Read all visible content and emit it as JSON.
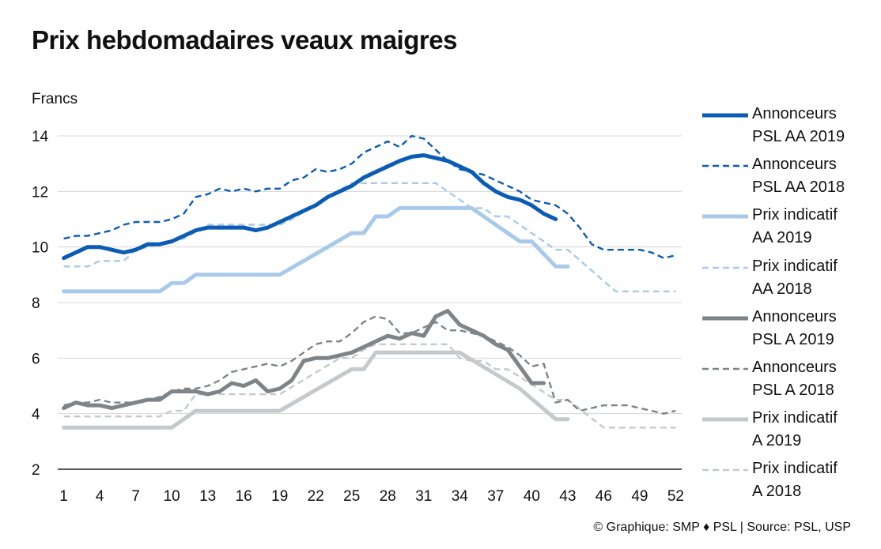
{
  "title": "Prix hebdomadaires veaux maigres",
  "units": "Francs",
  "credit": "© Graphique: SMP ♦ PSL | Source: PSL, USP",
  "chart_data": {
    "type": "line",
    "title": "Prix hebdomadaires veaux maigres",
    "ylabel": "Francs",
    "xlabel": "",
    "xlim": [
      1,
      52
    ],
    "ylim": [
      2,
      14
    ],
    "xticks": [
      1,
      4,
      7,
      10,
      13,
      16,
      19,
      22,
      25,
      28,
      31,
      34,
      37,
      40,
      43,
      46,
      49,
      52
    ],
    "yticks": [
      2,
      4,
      6,
      8,
      10,
      12,
      14
    ],
    "grid": "horizontal",
    "legend_position": "right",
    "series": [
      {
        "name": [
          "Annonceurs",
          "PSL AA 2019"
        ],
        "color": "#0b5cb5",
        "style": "solid",
        "width": 5,
        "x": [
          1,
          2,
          3,
          4,
          5,
          6,
          7,
          8,
          9,
          10,
          11,
          12,
          13,
          14,
          15,
          16,
          17,
          18,
          19,
          20,
          21,
          22,
          23,
          24,
          25,
          26,
          27,
          28,
          29,
          30,
          31,
          32,
          33,
          34,
          35,
          36,
          37,
          38,
          39,
          40,
          41,
          42
        ],
        "y": [
          9.6,
          9.8,
          10.0,
          10.0,
          9.9,
          9.8,
          9.9,
          10.1,
          10.1,
          10.2,
          10.4,
          10.6,
          10.7,
          10.7,
          10.7,
          10.7,
          10.6,
          10.7,
          10.9,
          11.1,
          11.3,
          11.5,
          11.8,
          12.0,
          12.2,
          12.5,
          12.7,
          12.9,
          13.1,
          13.25,
          13.3,
          13.2,
          13.1,
          12.9,
          12.7,
          12.3,
          12.0,
          11.8,
          11.7,
          11.5,
          11.2,
          11.0
        ]
      },
      {
        "name": [
          "Annonceurs",
          "PSL AA 2018"
        ],
        "color": "#0b5cb5",
        "style": "dashed",
        "width": 2.4,
        "x": [
          1,
          2,
          3,
          4,
          5,
          6,
          7,
          8,
          9,
          10,
          11,
          12,
          13,
          14,
          15,
          16,
          17,
          18,
          19,
          20,
          21,
          22,
          23,
          24,
          25,
          26,
          27,
          28,
          29,
          30,
          31,
          32,
          33,
          34,
          35,
          36,
          37,
          38,
          39,
          40,
          41,
          42,
          43,
          44,
          45,
          46,
          47,
          48,
          49,
          50,
          51,
          52
        ],
        "y": [
          10.3,
          10.4,
          10.4,
          10.5,
          10.6,
          10.8,
          10.9,
          10.9,
          10.9,
          11.0,
          11.2,
          11.8,
          11.9,
          12.1,
          12.0,
          12.1,
          12.0,
          12.1,
          12.1,
          12.4,
          12.5,
          12.8,
          12.7,
          12.8,
          13.0,
          13.4,
          13.6,
          13.8,
          13.6,
          14.0,
          13.9,
          13.5,
          13.1,
          12.8,
          12.7,
          12.6,
          12.4,
          12.2,
          12.0,
          11.7,
          11.6,
          11.5,
          11.2,
          10.7,
          10.1,
          9.9,
          9.9,
          9.9,
          9.9,
          9.8,
          9.6,
          9.7
        ]
      },
      {
        "name": [
          "Prix indicatif",
          "AA 2019"
        ],
        "color": "#a9c9eb",
        "style": "solid",
        "width": 5,
        "x": [
          1,
          9,
          10,
          11,
          12,
          19,
          25,
          26,
          27,
          28,
          29,
          35,
          39,
          40,
          42,
          43
        ],
        "y": [
          8.4,
          8.4,
          8.7,
          8.7,
          9.0,
          9.0,
          10.5,
          10.5,
          11.1,
          11.1,
          11.4,
          11.4,
          10.2,
          10.2,
          9.3,
          9.3
        ]
      },
      {
        "name": [
          "Prix indicatif",
          "AA 2018"
        ],
        "color": "#a9c9eb",
        "style": "dashed",
        "width": 2.4,
        "x": [
          1,
          3,
          4,
          6,
          7,
          11,
          13,
          19,
          20,
          25,
          32,
          35,
          36,
          37,
          38,
          42,
          43,
          47,
          48,
          52
        ],
        "y": [
          9.3,
          9.3,
          9.5,
          9.5,
          9.9,
          10.3,
          10.8,
          10.8,
          11.0,
          12.3,
          12.3,
          11.4,
          11.4,
          11.1,
          11.1,
          9.9,
          9.9,
          8.4,
          8.4,
          8.4
        ]
      },
      {
        "name": [
          "Annonceurs",
          "PSL A 2019"
        ],
        "color": "#7f8488",
        "style": "solid",
        "width": 5,
        "x": [
          1,
          2,
          3,
          4,
          5,
          6,
          7,
          8,
          9,
          10,
          11,
          12,
          13,
          14,
          15,
          16,
          17,
          18,
          19,
          20,
          21,
          22,
          23,
          24,
          25,
          26,
          27,
          28,
          29,
          30,
          31,
          32,
          33,
          34,
          35,
          36,
          37,
          38,
          39,
          40,
          41
        ],
        "y": [
          4.2,
          4.4,
          4.3,
          4.3,
          4.2,
          4.3,
          4.4,
          4.5,
          4.5,
          4.8,
          4.8,
          4.8,
          4.7,
          4.8,
          5.1,
          5.0,
          5.2,
          4.8,
          4.9,
          5.2,
          5.9,
          6.0,
          6.0,
          6.1,
          6.2,
          6.4,
          6.6,
          6.8,
          6.7,
          6.9,
          6.8,
          7.5,
          7.7,
          7.2,
          7.0,
          6.8,
          6.5,
          6.3,
          5.7,
          5.1,
          5.1
        ]
      },
      {
        "name": [
          "Annonceurs",
          "PSL A 2018"
        ],
        "color": "#7f8488",
        "style": "dashed",
        "width": 2.4,
        "x": [
          1,
          2,
          3,
          4,
          5,
          6,
          7,
          8,
          9,
          10,
          11,
          12,
          13,
          14,
          15,
          16,
          17,
          18,
          19,
          20,
          21,
          22,
          23,
          24,
          25,
          26,
          27,
          28,
          29,
          30,
          31,
          32,
          33,
          34,
          35,
          36,
          37,
          38,
          39,
          40,
          41,
          42,
          43,
          44,
          45,
          46,
          47,
          48,
          49,
          50,
          51,
          52
        ],
        "y": [
          4.3,
          4.4,
          4.4,
          4.5,
          4.4,
          4.4,
          4.4,
          4.5,
          4.6,
          4.8,
          4.9,
          4.9,
          5.0,
          5.2,
          5.5,
          5.6,
          5.7,
          5.8,
          5.7,
          5.9,
          6.2,
          6.5,
          6.6,
          6.6,
          6.9,
          7.3,
          7.5,
          7.4,
          6.9,
          6.9,
          7.1,
          7.3,
          7.0,
          7.0,
          6.9,
          6.8,
          6.6,
          6.4,
          6.1,
          5.7,
          5.8,
          4.4,
          4.5,
          4.1,
          4.2,
          4.3,
          4.3,
          4.3,
          4.2,
          4.1,
          4.0,
          4.1
        ]
      },
      {
        "name": [
          "Prix indicatif",
          "A 2019"
        ],
        "color": "#c5c9cc",
        "style": "solid",
        "width": 5,
        "x": [
          1,
          10,
          12,
          19,
          25,
          26,
          27,
          34,
          39,
          42,
          43
        ],
        "y": [
          3.5,
          3.5,
          4.1,
          4.1,
          5.6,
          5.6,
          6.2,
          6.2,
          4.9,
          3.8,
          3.8
        ]
      },
      {
        "name": [
          "Prix indicatif",
          "A 2018"
        ],
        "color": "#c5c9cc",
        "style": "dashed",
        "width": 2.4,
        "x": [
          1,
          9,
          10,
          11,
          12,
          19,
          24,
          25,
          26,
          27,
          33,
          34,
          35,
          36,
          37,
          38,
          42,
          43,
          46,
          47,
          52
        ],
        "y": [
          3.9,
          3.9,
          4.1,
          4.1,
          4.7,
          4.7,
          6.0,
          6.0,
          6.3,
          6.5,
          6.5,
          6.0,
          5.9,
          5.9,
          5.6,
          5.6,
          4.5,
          4.5,
          3.5,
          3.5,
          3.5
        ]
      }
    ]
  }
}
